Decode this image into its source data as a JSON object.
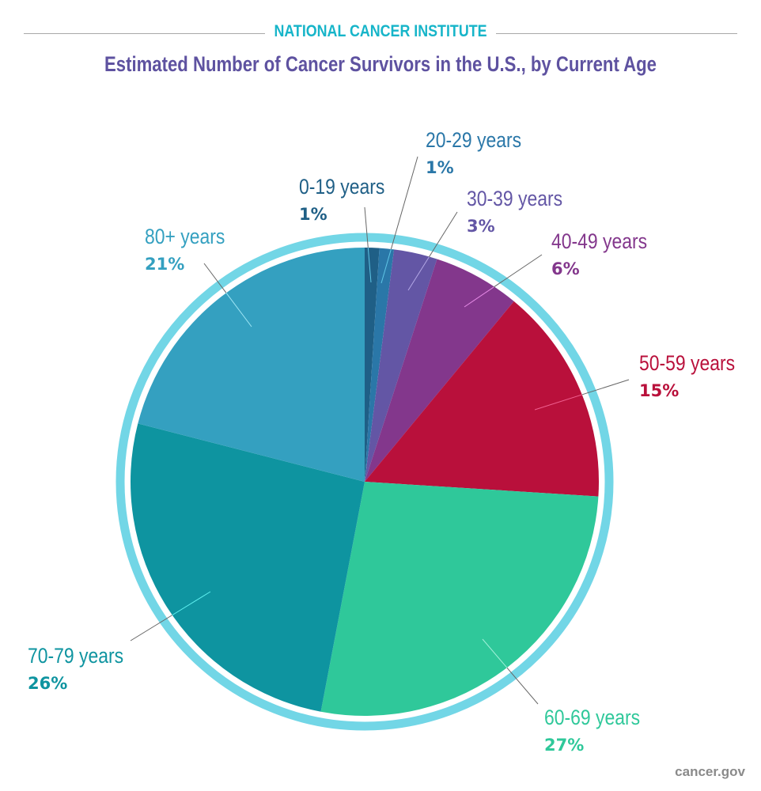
{
  "header": {
    "organization": "NATIONAL CANCER INSTITUTE"
  },
  "footer": {
    "source": "cancer.gov"
  },
  "chart_data": {
    "type": "pie",
    "title": "Estimated Number of Cancer Survivors in the U.S., by Current Age",
    "start": "12 o'clock, clockwise",
    "ring_color": "#72d6e6",
    "slices": [
      {
        "label": "0-19 years",
        "value": 1,
        "value_label": "1%",
        "color": "#1f5f86"
      },
      {
        "label": "20-29 years",
        "value": 1,
        "value_label": "1%",
        "color": "#2a77a8"
      },
      {
        "label": "30-39 years",
        "value": 3,
        "value_label": "3%",
        "color": "#6356a5"
      },
      {
        "label": "40-49 years",
        "value": 6,
        "value_label": "6%",
        "color": "#83378c"
      },
      {
        "label": "50-59 years",
        "value": 15,
        "value_label": "15%",
        "color": "#b9103b"
      },
      {
        "label": "60-69 years",
        "value": 27,
        "value_label": "27%",
        "color": "#2fc89a"
      },
      {
        "label": "70-79 years",
        "value": 26,
        "value_label": "26%",
        "color": "#0e94a0"
      },
      {
        "label": "80+ years",
        "value": 21,
        "value_label": "21%",
        "color": "#34a0c0"
      }
    ]
  }
}
